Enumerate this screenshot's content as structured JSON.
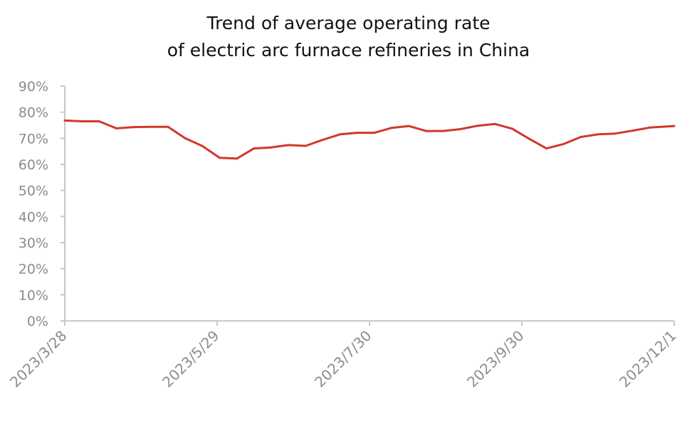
{
  "chart_data": {
    "type": "line",
    "title": [
      "Trend of average operating rate",
      "of electric arc furnace refineries in China"
    ],
    "xlabel": "",
    "ylabel": "",
    "ylim": [
      0,
      90
    ],
    "yticks": [
      "0%",
      "10%",
      "20%",
      "30%",
      "40%",
      "50%",
      "60%",
      "70%",
      "80%",
      "90%"
    ],
    "xlim": [
      "2023-03-28",
      "2023-12-01"
    ],
    "xticks": [
      {
        "date": "2023-03-28",
        "label": "2023/3/28"
      },
      {
        "date": "2023-05-29",
        "label": "2023/5/29"
      },
      {
        "date": "2023-07-30",
        "label": "2023/7/30"
      },
      {
        "date": "2023-09-30",
        "label": "2023/9/30"
      },
      {
        "date": "2023-12-01",
        "label": "2023/12/1"
      }
    ],
    "grid": false,
    "color": "#d2382b",
    "series": [
      {
        "name": "Average operating rate (%)",
        "x": [
          "2023-03-28",
          "2023-04-04",
          "2023-04-11",
          "2023-04-18",
          "2023-04-25",
          "2023-05-02",
          "2023-05-09",
          "2023-05-16",
          "2023-05-23",
          "2023-05-30",
          "2023-06-06",
          "2023-06-13",
          "2023-06-20",
          "2023-06-27",
          "2023-07-04",
          "2023-07-11",
          "2023-07-18",
          "2023-07-25",
          "2023-08-01",
          "2023-08-08",
          "2023-08-15",
          "2023-08-22",
          "2023-08-29",
          "2023-09-05",
          "2023-09-12",
          "2023-09-19",
          "2023-09-26",
          "2023-10-03",
          "2023-10-10",
          "2023-10-17",
          "2023-10-24",
          "2023-10-31",
          "2023-11-07",
          "2023-11-14",
          "2023-11-21",
          "2023-12-01"
        ],
        "values": [
          76.8,
          76.5,
          76.5,
          73.8,
          74.3,
          74.4,
          74.4,
          70.0,
          67.0,
          62.5,
          62.2,
          66.1,
          66.5,
          67.4,
          67.1,
          69.4,
          71.5,
          72.1,
          72.1,
          74.0,
          74.7,
          72.8,
          72.8,
          73.5,
          74.8,
          75.5,
          73.7,
          69.8,
          66.1,
          67.8,
          70.5,
          71.5,
          71.8,
          72.9,
          74.1,
          74.7
        ]
      }
    ]
  }
}
